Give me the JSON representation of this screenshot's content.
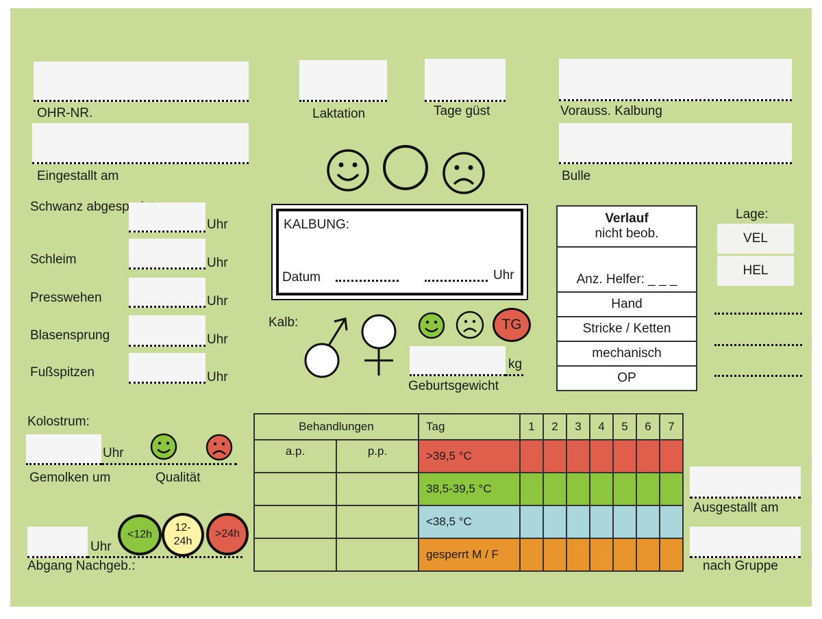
{
  "colors": {
    "card": "#c8dc98",
    "red": "#e05f4c",
    "green": "#8cc63f",
    "blue": "#a9d7dc",
    "orange": "#e9952e",
    "yellow": "#fff3a6"
  },
  "header": {
    "ohr_nr": "OHR-NR.",
    "laktation": "Laktation",
    "tage_guest": "Tage güst",
    "vorauss_kalbung": "Vorauss. Kalbung",
    "eingestallt_am": "Eingestallt am",
    "bulle": "Bulle"
  },
  "signs": {
    "uhr": "Uhr",
    "items": [
      "Schwanz abgespreizt",
      "Schleim",
      "Presswehen",
      "Blasensprung",
      "Fußspitzen"
    ]
  },
  "kalbung": {
    "title": "KALBUNG:",
    "datum": "Datum",
    "uhr": "Uhr"
  },
  "kalb": {
    "label": "Kalb:",
    "tg": "TG",
    "kg": "kg",
    "geburtsgewicht": "Geburtsgewicht"
  },
  "verlauf": {
    "title": "Verlauf",
    "subtitle": "nicht beob.",
    "helfer": "Anz. Helfer: _ _ _",
    "rows": [
      "Hand",
      "Stricke / Ketten",
      "mechanisch",
      "OP"
    ]
  },
  "lage": {
    "title": "Lage:",
    "options": [
      "VEL",
      "HEL"
    ]
  },
  "kolostrum": {
    "title": "Kolostrum:",
    "uhr": "Uhr",
    "gemolken": "Gemolken um",
    "qualitaet": "Qualität"
  },
  "abgang": {
    "uhr": "Uhr",
    "label": "Abgang Nachgeb.:",
    "t1": "<12h",
    "t2a": "12-",
    "t2b": "24h",
    "t3": ">24h"
  },
  "table": {
    "behandlungen": "Behandlungen",
    "ap": "a.p.",
    "pp": "p.p.",
    "tag": "Tag",
    "days": [
      "1",
      "2",
      "3",
      "4",
      "5",
      "6",
      "7"
    ],
    "rows": [
      ">39,5 °C",
      "38,5-39,5 °C",
      "<38,5 °C",
      "gesperrt M / F"
    ]
  },
  "right": {
    "ausgestallt": "Ausgestallt am",
    "nach_gruppe": "nach Gruppe"
  },
  "icons": [
    "smiley-icon",
    "neutral-face-icon",
    "sad-face-icon",
    "male-symbol-icon",
    "female-symbol-icon"
  ]
}
